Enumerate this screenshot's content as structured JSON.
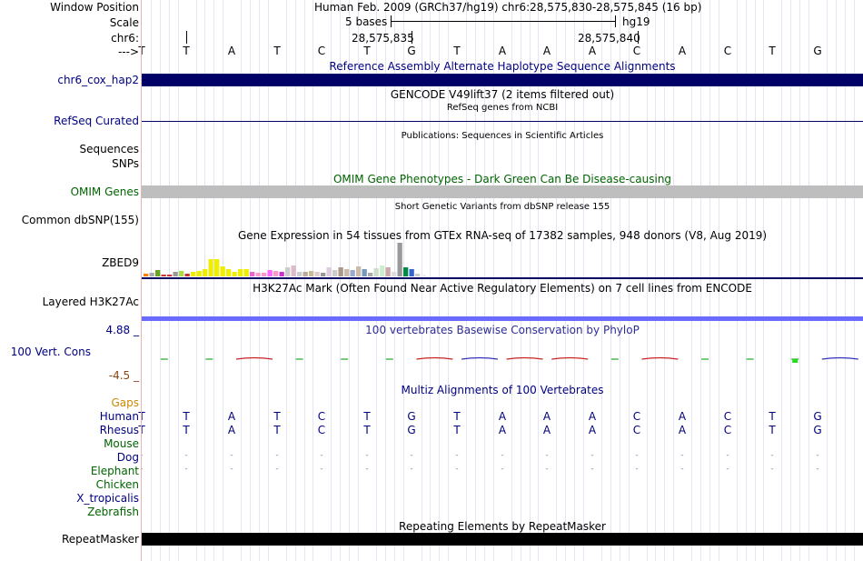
{
  "header": {
    "window_position_label": "Window Position",
    "window_position_text": "Human Feb. 2009 (GRCh37/hg19)   chr6:28,575,830-28,575,845 (16 bp)",
    "scale_label": "Scale",
    "scale_bases": "5 bases",
    "scale_assembly": "hg19",
    "chrom_label": "chr6:",
    "coord_left": "28,575,835",
    "coord_right": "28,575,840",
    "strand_label": "--->"
  },
  "reference_bases": [
    "T",
    "T",
    "A",
    "T",
    "C",
    "T",
    "G",
    "T",
    "A",
    "A",
    "A",
    "C",
    "A",
    "C",
    "T",
    "G"
  ],
  "tracks": {
    "alt_haplotype": {
      "title": "Reference Assembly Alternate Haplotype Sequence Alignments",
      "label": "chr6_cox_hap2",
      "color": "#000066"
    },
    "gencode": {
      "title": "GENCODE V49lift37 (2 items filtered out)",
      "subtitle": "RefSeq genes from NCBI"
    },
    "refseq": {
      "label": "RefSeq Curated"
    },
    "publications": {
      "title": "Publications: Sequences in Scientific Articles",
      "label_sequences": "Sequences",
      "label_snps": "SNPs"
    },
    "omim": {
      "title": "OMIM Gene Phenotypes - Dark Green Can Be Disease-causing",
      "label": "OMIM Genes",
      "color": "#bebebe"
    },
    "dbsnp": {
      "title": "Short Genetic Variants from dbSNP release 155",
      "label": "Common dbSNP(155)"
    },
    "gtex": {
      "title": "Gene Expression in 54 tissues from GTEx RNA-seq of 17382 samples, 948 donors (V8, Aug 2019)",
      "label": "ZBED9",
      "bars": [
        {
          "h": 3,
          "c": "#ff7f00"
        },
        {
          "h": 4,
          "c": "#aaaaaa"
        },
        {
          "h": 7,
          "c": "#66a61e"
        },
        {
          "h": 2,
          "c": "#cc3333"
        },
        {
          "h": 2,
          "c": "#cc3333"
        },
        {
          "h": 5,
          "c": "#999999"
        },
        {
          "h": 6,
          "c": "#aadd44"
        },
        {
          "h": 3,
          "c": "#cc3333"
        },
        {
          "h": 5,
          "c": "#eeee00"
        },
        {
          "h": 6,
          "c": "#eeee00"
        },
        {
          "h": 8,
          "c": "#eeee00"
        },
        {
          "h": 19,
          "c": "#eeee00"
        },
        {
          "h": 19,
          "c": "#eeee00"
        },
        {
          "h": 11,
          "c": "#eeee00"
        },
        {
          "h": 8,
          "c": "#eeee00"
        },
        {
          "h": 5,
          "c": "#eeee00"
        },
        {
          "h": 8,
          "c": "#eeee00"
        },
        {
          "h": 8,
          "c": "#eeee00"
        },
        {
          "h": 5,
          "c": "#ee66cc"
        },
        {
          "h": 4,
          "c": "#ff99cc"
        },
        {
          "h": 4,
          "c": "#ff99cc"
        },
        {
          "h": 7,
          "c": "#ff66ff"
        },
        {
          "h": 6,
          "c": "#ff99cc"
        },
        {
          "h": 5,
          "c": "#cc33cc"
        },
        {
          "h": 10,
          "c": "#cccccc"
        },
        {
          "h": 12,
          "c": "#ddbbcc"
        },
        {
          "h": 5,
          "c": "#cccccc"
        },
        {
          "h": 5,
          "c": "#bbaa99"
        },
        {
          "h": 6,
          "c": "#ccbb99"
        },
        {
          "h": 5,
          "c": "#ddcccc"
        },
        {
          "h": 4,
          "c": "#999999"
        },
        {
          "h": 10,
          "c": "#ddccdd"
        },
        {
          "h": 7,
          "c": "#cccccc"
        },
        {
          "h": 10,
          "c": "#aa9988"
        },
        {
          "h": 8,
          "c": "#ccbbaa"
        },
        {
          "h": 7,
          "c": "#99aacc"
        },
        {
          "h": 11,
          "c": "#ccbbaa"
        },
        {
          "h": 8,
          "c": "#7799bb"
        },
        {
          "h": 4,
          "c": "#aaaaaa"
        },
        {
          "h": 9,
          "c": "#ccddcc"
        },
        {
          "h": 12,
          "c": "#cceecc"
        },
        {
          "h": 10,
          "c": "#ccaaaa"
        },
        {
          "h": 5,
          "c": "#dddddd"
        },
        {
          "h": 37,
          "c": "#999999"
        },
        {
          "h": 10,
          "c": "#008844"
        },
        {
          "h": 8,
          "c": "#3366cc"
        },
        {
          "h": 3,
          "c": "#cccccc"
        },
        {
          "h": 2,
          "c": "#eeeeee"
        }
      ]
    },
    "h3k27ac": {
      "title": "H3K27Ac Mark (Often Found Near Active Regulatory Elements) on 7 cell lines from ENCODE",
      "label": "Layered H3K27Ac",
      "color": "#6a6aff"
    },
    "conservation": {
      "title": "100 vertebrates Basewise Conservation by PhyloP",
      "label": "100 Vert. Cons",
      "ymax": "4.88 _",
      "ymin": "-4.5 _",
      "scores": [
        0.2,
        0.1,
        -0.3,
        0.1,
        0.1,
        0.1,
        -0.4,
        -0.5,
        -0.3,
        -0.4,
        0.1,
        -0.4,
        0.2,
        0.2,
        0.3,
        -0.5
      ]
    },
    "multiz": {
      "title": "Multiz Alignments of 100 Vertebrates",
      "gaps_label": "Gaps",
      "species": [
        {
          "name": "Human",
          "row": [
            "T",
            "T",
            "A",
            "T",
            "C",
            "T",
            "G",
            "T",
            "A",
            "A",
            "A",
            "C",
            "A",
            "C",
            "T",
            "G"
          ]
        },
        {
          "name": "Rhesus",
          "row": [
            "T",
            "T",
            "A",
            "T",
            "C",
            "T",
            "G",
            "T",
            "A",
            "A",
            "A",
            "C",
            "A",
            "C",
            "T",
            "G"
          ]
        },
        {
          "name": "Mouse",
          "row": []
        },
        {
          "name": "Dog",
          "row": [
            "-",
            "-",
            "-",
            "-",
            "-",
            "-",
            "-",
            "-",
            "-",
            "-",
            "-",
            "-",
            "-",
            "-",
            "-",
            "-"
          ]
        },
        {
          "name": "Elephant",
          "row": [
            "-",
            "-",
            "-",
            "-",
            "-",
            "-",
            "-",
            "-",
            "-",
            "-",
            "-",
            "-",
            "-",
            "-",
            "-",
            "-"
          ]
        },
        {
          "name": "Chicken",
          "row": []
        },
        {
          "name": "X_tropicalis",
          "row": []
        },
        {
          "name": "Zebrafish",
          "row": []
        }
      ]
    },
    "repeatmasker": {
      "title": "Repeating Elements by RepeatMasker",
      "label": "RepeatMasker",
      "color": "#000000"
    }
  }
}
